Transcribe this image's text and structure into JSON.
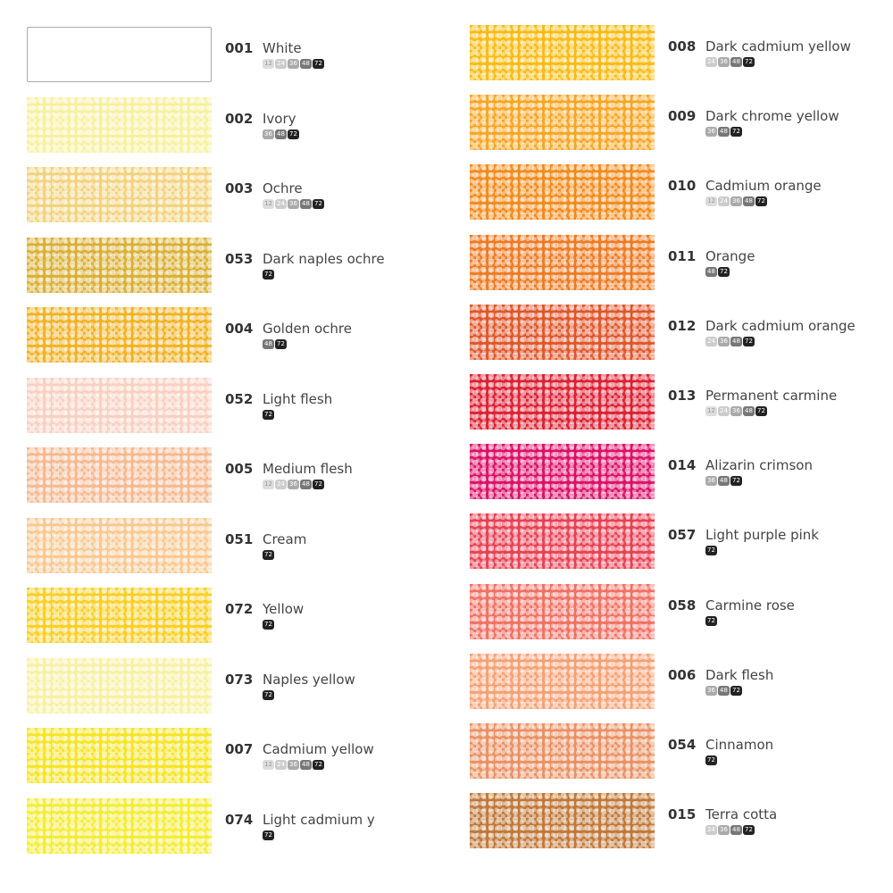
{
  "left": [
    {
      "code": "001",
      "name": "White",
      "color": "#ffffff",
      "sets": [
        "12",
        "24",
        "36",
        "48",
        "72"
      ]
    },
    {
      "code": "002",
      "name": "Ivory",
      "color": "#f7f09c",
      "sets": [
        "36",
        "48",
        "72"
      ]
    },
    {
      "code": "003",
      "name": "Ochre",
      "color": "#f2d27a",
      "sets": [
        "12",
        "24",
        "36",
        "48",
        "72"
      ]
    },
    {
      "code": "053",
      "name": "Dark naples ochre",
      "color": "#d9b032",
      "sets": [
        "72"
      ]
    },
    {
      "code": "004",
      "name": "Golden ochre",
      "color": "#f1b222",
      "sets": [
        "48",
        "72"
      ]
    },
    {
      "code": "052",
      "name": "Light flesh",
      "color": "#f9cfc0",
      "sets": [
        "72"
      ]
    },
    {
      "code": "005",
      "name": "Medium flesh",
      "color": "#f5b890",
      "sets": [
        "12",
        "24",
        "36",
        "48",
        "72"
      ]
    },
    {
      "code": "051",
      "name": "Cream",
      "color": "#f7c890",
      "sets": [
        "72"
      ]
    },
    {
      "code": "072",
      "name": "Yellow",
      "color": "#f8cf22",
      "sets": [
        "72"
      ]
    },
    {
      "code": "073",
      "name": "Naples yellow",
      "color": "#f7f0a0",
      "sets": [
        "72"
      ]
    },
    {
      "code": "007",
      "name": "Cadmium yellow",
      "color": "#f5e422",
      "sets": [
        "12",
        "24",
        "36",
        "48",
        "72"
      ]
    },
    {
      "code": "074",
      "name": "Light cadmium y",
      "color": "#f5ec30",
      "sets": [
        "72"
      ]
    }
  ],
  "right": [
    {
      "code": "008",
      "name": "Dark cadmium yellow",
      "color": "#f8bb12",
      "sets": [
        "24",
        "36",
        "48",
        "72"
      ]
    },
    {
      "code": "009",
      "name": "Dark chrome yellow",
      "color": "#f7a522",
      "sets": [
        "36",
        "48",
        "72"
      ]
    },
    {
      "code": "010",
      "name": "Cadmium orange",
      "color": "#f28a1a",
      "sets": [
        "12",
        "24",
        "36",
        "48",
        "72"
      ]
    },
    {
      "code": "011",
      "name": "Orange",
      "color": "#ee7a22",
      "sets": [
        "48",
        "72"
      ]
    },
    {
      "code": "012",
      "name": "Dark cadmium orange",
      "color": "#e0552a",
      "sets": [
        "24",
        "36",
        "48",
        "72"
      ]
    },
    {
      "code": "013",
      "name": "Permanent carmine",
      "color": "#dc2032",
      "sets": [
        "12",
        "24",
        "36",
        "48",
        "72"
      ]
    },
    {
      "code": "014",
      "name": "Alizarin crimson",
      "color": "#dc1068",
      "sets": [
        "36",
        "48",
        "72"
      ]
    },
    {
      "code": "057",
      "name": "Light  purple pink",
      "color": "#e84052",
      "sets": [
        "72"
      ]
    },
    {
      "code": "058",
      "name": "Carmine rose",
      "color": "#f07062",
      "sets": [
        "72"
      ]
    },
    {
      "code": "006",
      "name": "Dark flesh",
      "color": "#f5a072",
      "sets": [
        "36",
        "48",
        "72"
      ]
    },
    {
      "code": "054",
      "name": "Cinnamon",
      "color": "#ea9062",
      "sets": [
        "72"
      ]
    },
    {
      "code": "015",
      "name": "Terra cotta",
      "color": "#c07838",
      "sets": [
        "24",
        "36",
        "48",
        "72"
      ]
    }
  ]
}
